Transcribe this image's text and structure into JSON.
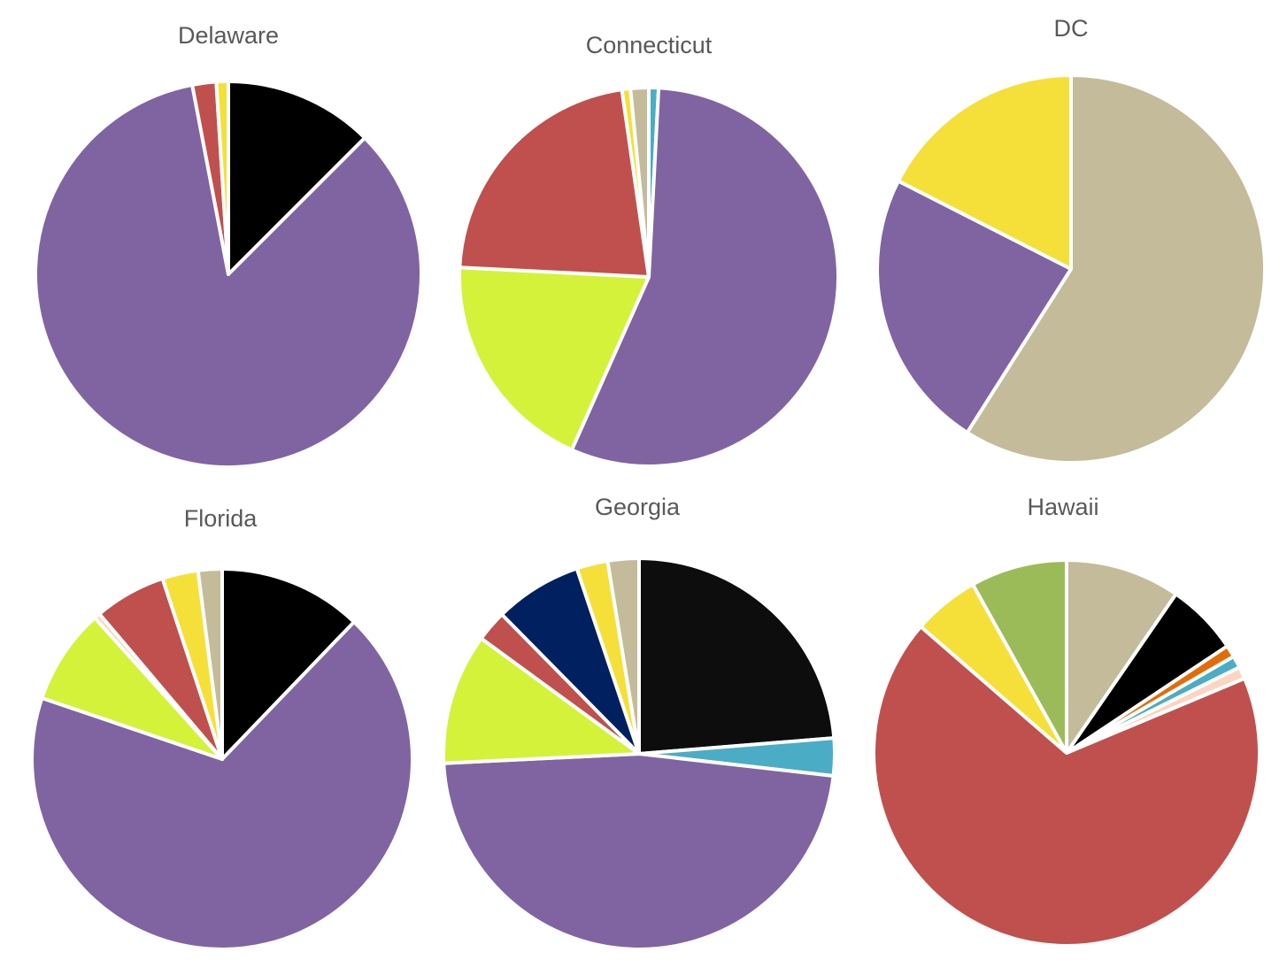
{
  "chart_data": [
    {
      "type": "pie",
      "title": "Delaware",
      "slices": [
        {
          "value": 12.5,
          "color": "#000000"
        },
        {
          "value": 84.5,
          "color": "#8064A2"
        },
        {
          "value": 2.0,
          "color": "#C0504D"
        },
        {
          "value": 1.0,
          "color": "#F5E03A"
        }
      ]
    },
    {
      "type": "pie",
      "title": "Connecticut",
      "slices": [
        {
          "value": 0.8,
          "color": "#4BACC6"
        },
        {
          "value": 54.0,
          "color": "#8064A2"
        },
        {
          "value": 18.5,
          "color": "#D4F23A"
        },
        {
          "value": 21.2,
          "color": "#C0504D"
        },
        {
          "value": 0.7,
          "color": "#F5E03A"
        },
        {
          "value": 1.5,
          "color": "#C4BB9A"
        }
      ]
    },
    {
      "type": "pie",
      "title": "DC",
      "slices": [
        {
          "value": 59.0,
          "color": "#C4BB9A"
        },
        {
          "value": 23.5,
          "color": "#8064A2"
        },
        {
          "value": 17.5,
          "color": "#F5E03A"
        }
      ]
    },
    {
      "type": "pie",
      "title": "Florida",
      "slices": [
        {
          "value": 12.0,
          "color": "#000000"
        },
        {
          "value": 67.0,
          "color": "#8064A2"
        },
        {
          "value": 8.0,
          "color": "#D4F23A"
        },
        {
          "value": 0.5,
          "color": "#FBD5C1"
        },
        {
          "value": 6.0,
          "color": "#C0504D"
        },
        {
          "value": 3.0,
          "color": "#F5E03A"
        },
        {
          "value": 2.0,
          "color": "#C4BB9A"
        }
      ]
    },
    {
      "type": "pie",
      "title": "Georgia",
      "slices": [
        {
          "value": 23.0,
          "color": "#0D0D0D"
        },
        {
          "value": 3.0,
          "color": "#4BACC6"
        },
        {
          "value": 46.0,
          "color": "#8064A2"
        },
        {
          "value": 10.5,
          "color": "#D4F23A"
        },
        {
          "value": 2.5,
          "color": "#C0504D"
        },
        {
          "value": 7.0,
          "color": "#002060"
        },
        {
          "value": 2.5,
          "color": "#F5E03A"
        },
        {
          "value": 2.5,
          "color": "#C4BB9A"
        }
      ]
    },
    {
      "type": "pie",
      "title": "Hawaii",
      "slices": [
        {
          "value": 9.5,
          "color": "#C4BB9A"
        },
        {
          "value": 6.0,
          "color": "#000000"
        },
        {
          "value": 1.0,
          "color": "#E36C09"
        },
        {
          "value": 1.0,
          "color": "#4BACC6"
        },
        {
          "value": 1.0,
          "color": "#FBD5C1"
        },
        {
          "value": 67.0,
          "color": "#C0504D"
        },
        {
          "value": 5.5,
          "color": "#F5E03A"
        },
        {
          "value": 8.0,
          "color": "#9BBB59"
        }
      ]
    }
  ]
}
